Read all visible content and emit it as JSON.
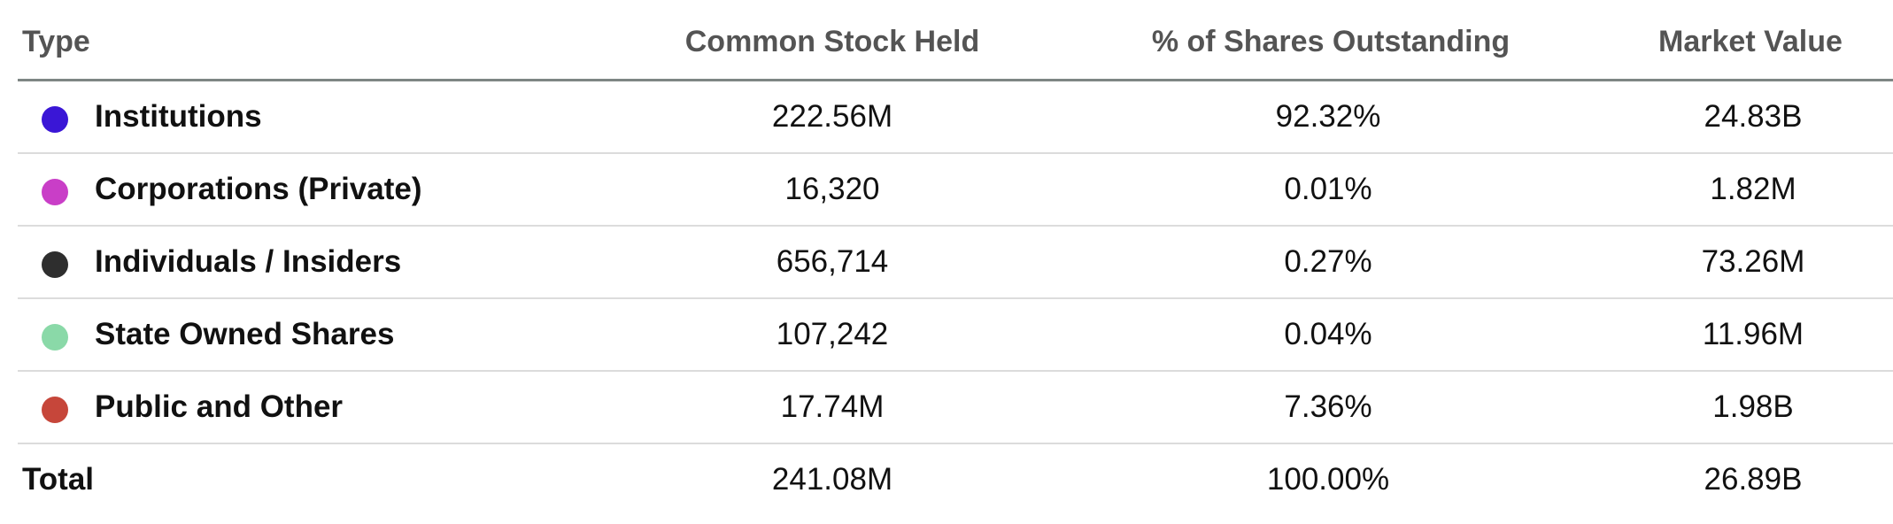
{
  "headers": {
    "type": "Type",
    "held": "Common Stock Held",
    "pct": "% of Shares Outstanding",
    "market_value": "Market Value"
  },
  "rows": [
    {
      "label": "Institutions",
      "color": "#3a16d6",
      "held": "222.56M",
      "pct": "92.32%",
      "market_value": "24.83B"
    },
    {
      "label": "Corporations (Private)",
      "color": "#c93ec7",
      "held": "16,320",
      "pct": "0.01%",
      "market_value": "1.82M"
    },
    {
      "label": "Individuals / Insiders",
      "color": "#2e2e2e",
      "held": "656,714",
      "pct": "0.27%",
      "market_value": "73.26M"
    },
    {
      "label": "State Owned Shares",
      "color": "#8ad9a8",
      "held": "107,242",
      "pct": "0.04%",
      "market_value": "11.96M"
    },
    {
      "label": "Public and Other",
      "color": "#c6463a",
      "held": "17.74M",
      "pct": "7.36%",
      "market_value": "1.98B"
    }
  ],
  "total": {
    "label": "Total",
    "held": "241.08M",
    "pct": "100.00%",
    "market_value": "26.89B"
  }
}
